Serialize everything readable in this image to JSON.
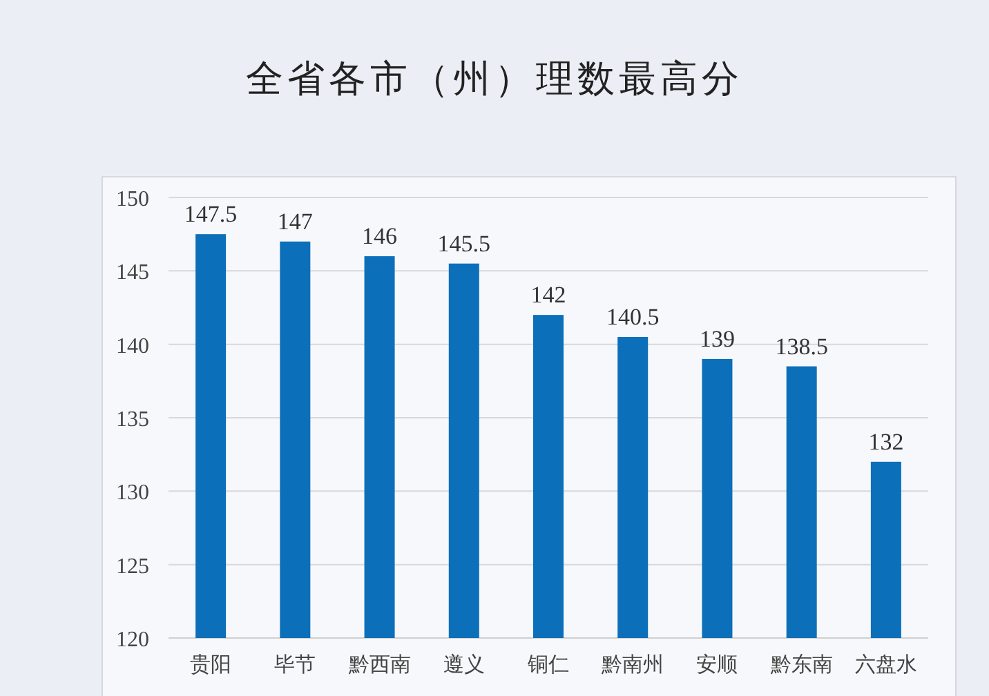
{
  "chart_data": {
    "type": "bar",
    "title": "全省各市（州）理数最高分",
    "categories": [
      "贵阳",
      "毕节",
      "黔西南",
      "遵义",
      "铜仁",
      "黔南州",
      "安顺",
      "黔东南",
      "六盘水"
    ],
    "values": [
      147.5,
      147,
      146,
      145.5,
      142,
      140.5,
      139,
      138.5,
      132
    ],
    "color": "#0b6fba",
    "ylim": [
      120,
      150
    ],
    "yticks": [
      120,
      125,
      130,
      135,
      140,
      145,
      150
    ],
    "grid": "y",
    "data_labels": true
  }
}
